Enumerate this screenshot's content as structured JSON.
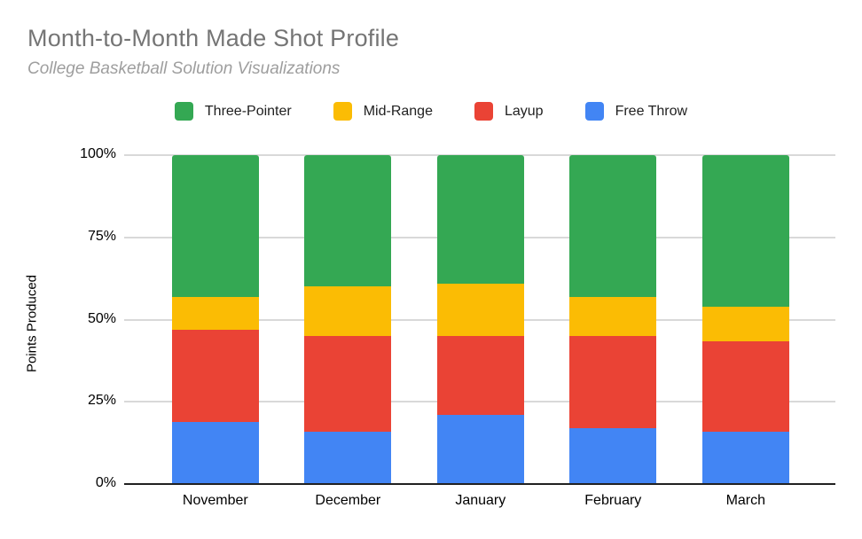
{
  "header": {
    "title": "Month-to-Month Made Shot Profile",
    "subtitle": "College Basketball Solution Visualizations"
  },
  "legend": {
    "items": [
      {
        "label": "Three-Pointer",
        "color": "#34a853"
      },
      {
        "label": "Mid-Range",
        "color": "#fbbc04"
      },
      {
        "label": "Layup",
        "color": "#ea4335"
      },
      {
        "label": "Free Throw",
        "color": "#4285f4"
      }
    ]
  },
  "chart_data": {
    "type": "bar",
    "stacked": true,
    "percent_stacked": true,
    "title": "Month-to-Month Made Shot Profile",
    "subtitle": "College Basketball Solution Visualizations",
    "categories": [
      "November",
      "December",
      "January",
      "February",
      "March"
    ],
    "series": [
      {
        "name": "Free Throw",
        "color": "#4285f4",
        "values": [
          19,
          16,
          21,
          17,
          16
        ]
      },
      {
        "name": "Layup",
        "color": "#ea4335",
        "values": [
          28,
          29,
          24,
          28,
          27.5
        ]
      },
      {
        "name": "Mid-Range",
        "color": "#fbbc04",
        "values": [
          10,
          15,
          16,
          12,
          10.5
        ]
      },
      {
        "name": "Three-Pointer",
        "color": "#34a853",
        "values": [
          43,
          40,
          39,
          43,
          46
        ]
      }
    ],
    "xlabel": "",
    "ylabel": "Points Produced",
    "ylim": [
      0,
      100
    ],
    "yticks": [
      "0%",
      "25%",
      "50%",
      "75%",
      "100%"
    ],
    "grid": true,
    "legend_position": "top",
    "colors": {
      "grid": "#d9d9d9",
      "axis": "#212121",
      "title_text": "#757575",
      "subtitle_text": "#9e9e9e",
      "tick_text": "#000000"
    }
  }
}
